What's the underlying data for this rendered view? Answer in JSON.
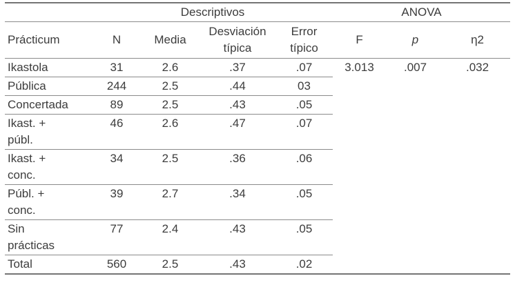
{
  "table": {
    "group_header": {
      "descriptivos": "Descriptivos",
      "anova": "ANOVA"
    },
    "columns": {
      "practicum": "Prácticum",
      "n": "N",
      "media": "Media",
      "sd": "Desviación típica",
      "se": "Error típico",
      "f": "F",
      "p": "p",
      "eta2": "η2"
    },
    "rows": [
      {
        "label": "Ikastola",
        "n": "31",
        "media": "2.6",
        "sd": ".37",
        "se": ".07",
        "f": "3.013",
        "p": ".007",
        "eta2": ".032"
      },
      {
        "label": "Pública",
        "n": "244",
        "media": "2.5",
        "sd": ".44",
        "se": "03",
        "f": "",
        "p": "",
        "eta2": ""
      },
      {
        "label": "Concertada",
        "n": "89",
        "media": "2.5",
        "sd": ".43",
        "se": ".05",
        "f": "",
        "p": "",
        "eta2": ""
      },
      {
        "label": "Ikast. + públ.",
        "n": "46",
        "media": "2.6",
        "sd": ".47",
        "se": ".07",
        "f": "",
        "p": "",
        "eta2": ""
      },
      {
        "label": "Ikast. + conc.",
        "n": "34",
        "media": "2.5",
        "sd": ".36",
        "se": ".06",
        "f": "",
        "p": "",
        "eta2": ""
      },
      {
        "label": "Públ. + conc.",
        "n": "39",
        "media": "2.7",
        "sd": ".34",
        "se": ".05",
        "f": "",
        "p": "",
        "eta2": ""
      },
      {
        "label": "Sin prácticas",
        "n": "77",
        "media": "2.4",
        "sd": ".43",
        "se": ".05",
        "f": "",
        "p": "",
        "eta2": ""
      },
      {
        "label": "Total",
        "n": "560",
        "media": "2.5",
        "sd": ".43",
        "se": ".02",
        "f": "",
        "p": "",
        "eta2": ""
      }
    ]
  }
}
